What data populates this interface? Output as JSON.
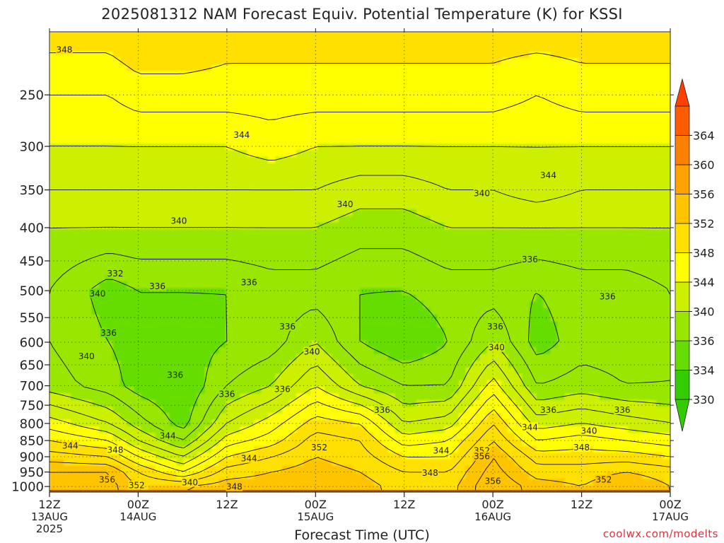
{
  "title": "2025081312 NAM Forecast Equiv. Potential Temperature (K) for KSSI",
  "xlabel": "Forecast Time (UTC)",
  "credit": "coolwx.com/modelts",
  "chart_data": {
    "type": "heatmap",
    "subtype": "time-height cross section (filled contours)",
    "title": "2025081312 NAM Forecast Equiv. Potential Temperature (K) for KSSI",
    "xlabel": "Forecast Time (UTC)",
    "ylabel": "",
    "y_scale": "log-pressure (inverted)",
    "ylim": [
      1020,
      200
    ],
    "x_range_hours": [
      0,
      84
    ],
    "x_ticks": [
      {
        "hour": 0,
        "label": "12Z",
        "sub": "13AUG",
        "sub2": "2025"
      },
      {
        "hour": 12,
        "label": "00Z",
        "sub": "14AUG",
        "sub2": ""
      },
      {
        "hour": 24,
        "label": "12Z",
        "sub": "",
        "sub2": ""
      },
      {
        "hour": 36,
        "label": "00Z",
        "sub": "15AUG",
        "sub2": ""
      },
      {
        "hour": 48,
        "label": "12Z",
        "sub": "",
        "sub2": ""
      },
      {
        "hour": 60,
        "label": "00Z",
        "sub": "16AUG",
        "sub2": ""
      },
      {
        "hour": 72,
        "label": "12Z",
        "sub": "",
        "sub2": ""
      },
      {
        "hour": 84,
        "label": "00Z",
        "sub": "17AUG",
        "sub2": ""
      }
    ],
    "y_ticks": [
      250,
      300,
      350,
      400,
      450,
      500,
      550,
      600,
      650,
      700,
      750,
      800,
      850,
      900,
      950,
      1000
    ],
    "grid": true,
    "colorbar": {
      "levels": [
        330,
        334,
        336,
        340,
        344,
        348,
        352,
        356,
        360,
        364
      ],
      "colors": [
        "#33cc00",
        "#66dd00",
        "#99e600",
        "#ccf000",
        "#ffff00",
        "#ffe000",
        "#ffc400",
        "#ffa200",
        "#ff8000",
        "#ff5c00"
      ],
      "under_color": "#33cc00",
      "over_color": "#ff4000"
    },
    "surface_color": "#a0522d",
    "profiles": [
      {
        "hour": 0,
        "p": [
          1000,
          950,
          900,
          850,
          800,
          700,
          600,
          500,
          400,
          350,
          300,
          250,
          200
        ],
        "theta_e": [
          354,
          354,
          351,
          348,
          345,
          339,
          338,
          338,
          340,
          342,
          344,
          346,
          349
        ]
      },
      {
        "hour": 8,
        "p": [
          1000,
          950,
          900,
          850,
          800,
          700,
          600,
          500,
          400,
          350,
          300,
          250,
          200
        ],
        "theta_e": [
          355,
          354,
          350,
          346,
          342,
          337,
          336,
          335,
          340,
          342,
          344,
          346,
          349
        ]
      },
      {
        "hour": 12,
        "p": [
          1000,
          950,
          900,
          850,
          800,
          700,
          600,
          500,
          400,
          350,
          300,
          250,
          200
        ],
        "theta_e": [
          352,
          350,
          346,
          342,
          339,
          335,
          335,
          336,
          340,
          342,
          344,
          347,
          350
        ]
      },
      {
        "hour": 18,
        "p": [
          1000,
          950,
          900,
          850,
          800,
          700,
          600,
          500,
          400,
          350,
          300,
          250,
          200
        ],
        "theta_e": [
          352,
          346,
          342,
          338,
          335,
          334,
          335,
          336,
          340,
          342,
          344,
          347,
          350
        ]
      },
      {
        "hour": 24,
        "p": [
          1000,
          950,
          900,
          850,
          800,
          700,
          600,
          500,
          400,
          350,
          300,
          250,
          200
        ],
        "theta_e": [
          353,
          351,
          348,
          345,
          342,
          338,
          336,
          336,
          340,
          342,
          344,
          347,
          349
        ]
      },
      {
        "hour": 30,
        "p": [
          1000,
          950,
          900,
          850,
          800,
          700,
          600,
          500,
          400,
          350,
          300,
          250,
          200
        ],
        "theta_e": [
          353,
          352,
          350,
          347,
          345,
          340,
          337,
          337,
          340,
          342,
          345,
          347,
          349
        ]
      },
      {
        "hour": 36,
        "p": [
          1000,
          950,
          900,
          850,
          800,
          700,
          600,
          500,
          400,
          350,
          300,
          250,
          200
        ],
        "theta_e": [
          353,
          353,
          352,
          351,
          349,
          344,
          340,
          337,
          340,
          342,
          344,
          347,
          349
        ]
      },
      {
        "hour": 42,
        "p": [
          1000,
          950,
          900,
          850,
          800,
          700,
          600,
          500,
          400,
          350,
          300,
          250,
          200
        ],
        "theta_e": [
          353,
          352,
          351,
          350,
          348,
          340,
          336,
          336,
          339,
          341,
          344,
          347,
          349
        ]
      },
      {
        "hour": 48,
        "p": [
          1000,
          950,
          900,
          850,
          800,
          700,
          600,
          500,
          400,
          350,
          300,
          250,
          200
        ],
        "theta_e": [
          351,
          350,
          348,
          345,
          342,
          338,
          334,
          336,
          339,
          341,
          344,
          347,
          349
        ]
      },
      {
        "hour": 54,
        "p": [
          1000,
          950,
          900,
          850,
          800,
          700,
          600,
          500,
          400,
          350,
          300,
          250,
          200
        ],
        "theta_e": [
          351,
          350,
          348,
          346,
          343,
          338,
          336,
          337,
          340,
          342,
          344,
          347,
          349
        ]
      },
      {
        "hour": 60,
        "p": [
          1000,
          950,
          900,
          850,
          800,
          700,
          600,
          500,
          400,
          350,
          300,
          250,
          200
        ],
        "theta_e": [
          356,
          355,
          354,
          352,
          350,
          345,
          340,
          337,
          340,
          342,
          344,
          347,
          349
        ]
      },
      {
        "hour": 66,
        "p": [
          1000,
          950,
          900,
          850,
          800,
          700,
          600,
          500,
          400,
          350,
          300,
          250,
          200
        ],
        "theta_e": [
          353,
          351,
          349,
          346,
          343,
          338,
          335,
          336,
          340,
          343,
          344,
          346,
          349
        ]
      },
      {
        "hour": 72,
        "p": [
          1000,
          950,
          900,
          850,
          800,
          700,
          600,
          500,
          400,
          350,
          300,
          250,
          200
        ],
        "theta_e": [
          352,
          351,
          349,
          347,
          344,
          339,
          337,
          337,
          340,
          342,
          344,
          347,
          349
        ]
      },
      {
        "hour": 78,
        "p": [
          1000,
          950,
          900,
          850,
          800,
          700,
          600,
          500,
          400,
          350,
          300,
          250,
          200
        ],
        "theta_e": [
          354,
          352,
          349,
          346,
          343,
          338,
          337,
          337,
          340,
          342,
          344,
          347,
          349
        ]
      },
      {
        "hour": 84,
        "p": [
          1000,
          950,
          900,
          850,
          800,
          700,
          600,
          500,
          400,
          350,
          300,
          250,
          200
        ],
        "theta_e": [
          352,
          351,
          348,
          345,
          342,
          338,
          338,
          338,
          340,
          342,
          344,
          347,
          349
        ]
      }
    ],
    "contour_labels": [
      {
        "hour": 2.0,
        "p": 213,
        "text": "348"
      },
      {
        "hour": 26.0,
        "p": 288,
        "text": "344"
      },
      {
        "hour": 17.5,
        "p": 390,
        "text": "340"
      },
      {
        "hour": 40.0,
        "p": 368,
        "text": "340"
      },
      {
        "hour": 58.5,
        "p": 354,
        "text": "340"
      },
      {
        "hour": 67.5,
        "p": 332,
        "text": "344"
      },
      {
        "hour": 8.9,
        "p": 470,
        "text": "332"
      },
      {
        "hour": 6.5,
        "p": 505,
        "text": "340"
      },
      {
        "hour": 14.6,
        "p": 492,
        "text": "336"
      },
      {
        "hour": 27.0,
        "p": 485,
        "text": "336"
      },
      {
        "hour": 8.0,
        "p": 580,
        "text": "336"
      },
      {
        "hour": 5.0,
        "p": 630,
        "text": "340"
      },
      {
        "hour": 17.0,
        "p": 673,
        "text": "336"
      },
      {
        "hour": 24.0,
        "p": 720,
        "text": "336"
      },
      {
        "hour": 31.5,
        "p": 708,
        "text": "336"
      },
      {
        "hour": 32.2,
        "p": 567,
        "text": "336"
      },
      {
        "hour": 35.5,
        "p": 620,
        "text": "340"
      },
      {
        "hour": 45.0,
        "p": 762,
        "text": "336"
      },
      {
        "hour": 60.3,
        "p": 567,
        "text": "336"
      },
      {
        "hour": 65.0,
        "p": 447,
        "text": "336"
      },
      {
        "hour": 75.5,
        "p": 510,
        "text": "336"
      },
      {
        "hour": 60.5,
        "p": 611,
        "text": "340"
      },
      {
        "hour": 67.5,
        "p": 762,
        "text": "336"
      },
      {
        "hour": 77.5,
        "p": 762,
        "text": "336"
      },
      {
        "hour": 65.0,
        "p": 810,
        "text": "344"
      },
      {
        "hour": 73.0,
        "p": 820,
        "text": "340"
      },
      {
        "hour": 72.0,
        "p": 870,
        "text": "348"
      },
      {
        "hour": 2.8,
        "p": 865,
        "text": "344"
      },
      {
        "hour": 8.9,
        "p": 878,
        "text": "348"
      },
      {
        "hour": 16.0,
        "p": 835,
        "text": "344"
      },
      {
        "hour": 27.0,
        "p": 905,
        "text": "344"
      },
      {
        "hour": 36.5,
        "p": 870,
        "text": "352"
      },
      {
        "hour": 53.0,
        "p": 880,
        "text": "344"
      },
      {
        "hour": 58.5,
        "p": 880,
        "text": "352"
      },
      {
        "hour": 58.5,
        "p": 898,
        "text": "356"
      },
      {
        "hour": 51.5,
        "p": 952,
        "text": "348"
      },
      {
        "hour": 7.8,
        "p": 975,
        "text": "356"
      },
      {
        "hour": 11.8,
        "p": 995,
        "text": "352"
      },
      {
        "hour": 19.0,
        "p": 985,
        "text": "340"
      },
      {
        "hour": 25.0,
        "p": 1000,
        "text": "348"
      },
      {
        "hour": 60.0,
        "p": 980,
        "text": "356"
      },
      {
        "hour": 75.0,
        "p": 975,
        "text": "352"
      }
    ]
  }
}
